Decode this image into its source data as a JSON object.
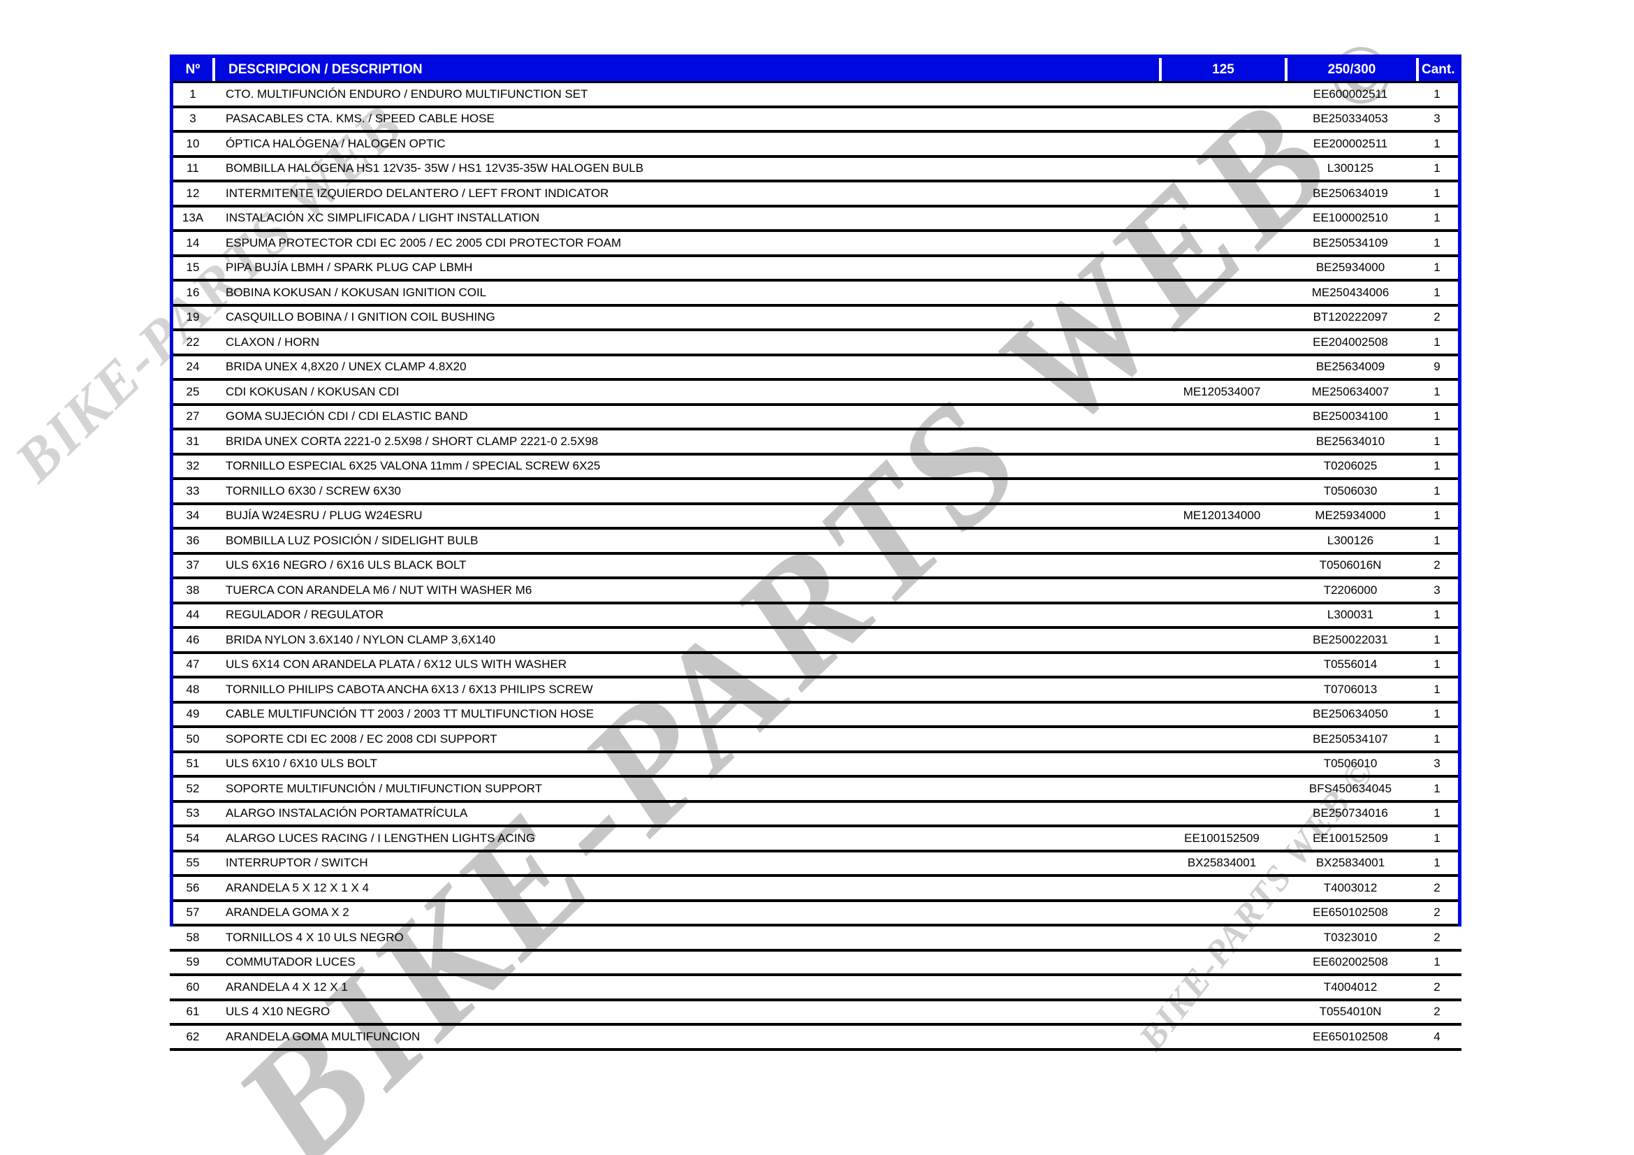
{
  "colors": {
    "header_blue": "#0008e0",
    "line_black": "#000000",
    "watermark_gray": "#c6c6c6"
  },
  "watermarks": {
    "large_text": "BIKE-PARTS WEB",
    "large_symbol": "©",
    "small_text": "BIKE-PARTS WEB ©",
    "fragment_text": "BIKE-PARTS WEB"
  },
  "table": {
    "columns": {
      "number": "Nº",
      "description": "DESCRIPCION / DESCRIPTION",
      "ref_125": "125",
      "ref_250_300": "250/300",
      "quantity": "Cant."
    },
    "rows": [
      {
        "num": "1",
        "description": "CTO. MULTIFUNCIÓN ENDURO / ENDURO MULTIFUNCTION SET",
        "ref_125": "",
        "ref_250_300": "EE600002511",
        "qty": "1",
        "in_main_box": true
      },
      {
        "num": "3",
        "description": "PASACABLES CTA. KMS. / SPEED CABLE HOSE",
        "ref_125": "",
        "ref_250_300": "BE250334053",
        "qty": "3",
        "in_main_box": true
      },
      {
        "num": "10",
        "description": "ÓPTICA HALÓGENA / HALOGEN OPTIC",
        "ref_125": "",
        "ref_250_300": "EE200002511",
        "qty": "1",
        "in_main_box": true
      },
      {
        "num": "11",
        "description": "BOMBILLA HALÓGENA HS1 12V35- 35W / HS1 12V35-35W HALOGEN BULB",
        "ref_125": "",
        "ref_250_300": "L300125",
        "qty": "1",
        "in_main_box": true
      },
      {
        "num": "12",
        "description": "INTERMITENTE IZQUIERDO DELANTERO / LEFT FRONT INDICATOR",
        "ref_125": "",
        "ref_250_300": "BE250634019",
        "qty": "1",
        "in_main_box": true
      },
      {
        "num": "13A",
        "description": "INSTALACIÓN XC SIMPLIFICADA / LIGHT  INSTALLATION",
        "ref_125": "",
        "ref_250_300": "EE100002510",
        "qty": "1",
        "in_main_box": true
      },
      {
        "num": "14",
        "description": "ESPUMA PROTECTOR CDI EC 2005 / EC 2005 CDI PROTECTOR FOAM",
        "ref_125": "",
        "ref_250_300": "BE250534109",
        "qty": "1",
        "in_main_box": true
      },
      {
        "num": "15",
        "description": "PIPA BUJÍA LBMH / SPARK PLUG CAP LBMH",
        "ref_125": "",
        "ref_250_300": "BE25934000",
        "qty": "1",
        "in_main_box": true
      },
      {
        "num": "16",
        "description": "BOBINA KOKUSAN / KOKUSAN IGNITION COIL",
        "ref_125": "",
        "ref_250_300": "ME250434006",
        "qty": "1",
        "in_main_box": true
      },
      {
        "num": "19",
        "description": "CASQUILLO BOBINA / I GNITION COIL BUSHING",
        "ref_125": "",
        "ref_250_300": "BT120222097",
        "qty": "2",
        "in_main_box": true
      },
      {
        "num": "22",
        "description": "CLAXON / HORN",
        "ref_125": "",
        "ref_250_300": "EE204002508",
        "qty": "1",
        "in_main_box": true
      },
      {
        "num": "24",
        "description": "BRIDA UNEX 4,8X20 / UNEX CLAMP 4.8X20",
        "ref_125": "",
        "ref_250_300": "BE25634009",
        "qty": "9",
        "in_main_box": true
      },
      {
        "num": "25",
        "description": "CDI KOKUSAN / KOKUSAN CDI",
        "ref_125": "ME120534007",
        "ref_250_300": "ME250634007",
        "qty": "1",
        "in_main_box": true
      },
      {
        "num": "27",
        "description": "GOMA SUJECIÓN CDI / CDI ELASTIC BAND",
        "ref_125": "",
        "ref_250_300": "BE250034100",
        "qty": "1",
        "in_main_box": true
      },
      {
        "num": "31",
        "description": "BRIDA UNEX CORTA 2221-0 2.5X98 / SHORT CLAMP 2221-0 2.5X98",
        "ref_125": "",
        "ref_250_300": "BE25634010",
        "qty": "1",
        "in_main_box": true
      },
      {
        "num": "32",
        "description": "TORNILLO ESPECIAL 6X25 VALONA 11mm / SPECIAL SCREW 6X25",
        "ref_125": "",
        "ref_250_300": "T0206025",
        "qty": "1",
        "in_main_box": true
      },
      {
        "num": "33",
        "description": "TORNILLO 6X30 / SCREW 6X30",
        "ref_125": "",
        "ref_250_300": "T0506030",
        "qty": "1",
        "in_main_box": true
      },
      {
        "num": "34",
        "description": "BUJÍA W24ESRU / PLUG W24ESRU",
        "ref_125": "ME120134000",
        "ref_250_300": "ME25934000",
        "qty": "1",
        "in_main_box": true
      },
      {
        "num": "36",
        "description": "BOMBILLA LUZ POSICIÓN / SIDELIGHT BULB",
        "ref_125": "",
        "ref_250_300": "L300126",
        "qty": "1",
        "in_main_box": true
      },
      {
        "num": "37",
        "description": "ULS 6X16 NEGRO / 6X16 ULS BLACK BOLT",
        "ref_125": "",
        "ref_250_300": "T0506016N",
        "qty": "2",
        "in_main_box": true
      },
      {
        "num": "38",
        "description": "TUERCA CON ARANDELA M6 / NUT WITH WASHER M6",
        "ref_125": "",
        "ref_250_300": "T2206000",
        "qty": "3",
        "in_main_box": true
      },
      {
        "num": "44",
        "description": "REGULADOR / REGULATOR",
        "ref_125": "",
        "ref_250_300": "L300031",
        "qty": "1",
        "in_main_box": true
      },
      {
        "num": "46",
        "description": "BRIDA NYLON 3.6X140 / NYLON CLAMP 3,6X140",
        "ref_125": "",
        "ref_250_300": "BE250022031",
        "qty": "1",
        "in_main_box": true
      },
      {
        "num": "47",
        "description": "ULS 6X14 CON ARANDELA PLATA / 6X12 ULS WITH WASHER",
        "ref_125": "",
        "ref_250_300": "T0556014",
        "qty": "1",
        "in_main_box": true
      },
      {
        "num": "48",
        "description": "TORNILLO PHILIPS CABOTA ANCHA 6X13 / 6X13 PHILIPS SCREW",
        "ref_125": "",
        "ref_250_300": "T0706013",
        "qty": "1",
        "in_main_box": true
      },
      {
        "num": "49",
        "description": "CABLE MULTIFUNCIÓN TT 2003 / 2003 TT MULTIFUNCTION HOSE",
        "ref_125": "",
        "ref_250_300": "BE250634050",
        "qty": "1",
        "in_main_box": true
      },
      {
        "num": "50",
        "description": "SOPORTE CDI EC 2008 / EC 2008 CDI SUPPORT",
        "ref_125": "",
        "ref_250_300": "BE250534107",
        "qty": "1",
        "in_main_box": true
      },
      {
        "num": "51",
        "description": "ULS 6X10 / 6X10 ULS BOLT",
        "ref_125": "",
        "ref_250_300": "T0506010",
        "qty": "3",
        "in_main_box": true
      },
      {
        "num": "52",
        "description": "SOPORTE MULTIFUNCIÓN / MULTIFUNCTION SUPPORT",
        "ref_125": "",
        "ref_250_300": "BFS450634045",
        "qty": "1",
        "in_main_box": true
      },
      {
        "num": "53",
        "description": "ALARGO INSTALACIÓN PORTAMATRÍCULA",
        "ref_125": "",
        "ref_250_300": "BE250734016",
        "qty": "1",
        "in_main_box": true
      },
      {
        "num": "54",
        "description": "ALARGO LUCES RACING / I LENGTHEN LIGHTS ACING",
        "ref_125": "EE100152509",
        "ref_250_300": "EE100152509",
        "qty": "1",
        "in_main_box": true
      },
      {
        "num": "55",
        "description": "INTERRUPTOR / SWITCH",
        "ref_125": "BX25834001",
        "ref_250_300": "BX25834001",
        "qty": "1",
        "in_main_box": true
      },
      {
        "num": "56",
        "description": "ARANDELA 5 X 12 X 1  X 4",
        "ref_125": "",
        "ref_250_300": "T4003012",
        "qty": "2",
        "in_main_box": true
      },
      {
        "num": "57",
        "description": "ARANDELA GOMA  X 2",
        "ref_125": "",
        "ref_250_300": "EE650102508",
        "qty": "2",
        "in_main_box": true
      },
      {
        "num": "58",
        "description": "TORNILLOS  4 X 10 ULS NEGRO",
        "ref_125": "",
        "ref_250_300": "T0323010",
        "qty": "2",
        "in_main_box": false
      },
      {
        "num": "59",
        "description": "COMMUTADOR LUCES",
        "ref_125": "",
        "ref_250_300": "EE602002508",
        "qty": "1",
        "in_main_box": false
      },
      {
        "num": "60",
        "description": "ARANDELA 4 X 12 X 1",
        "ref_125": "",
        "ref_250_300": "T4004012",
        "qty": "2",
        "in_main_box": false
      },
      {
        "num": "61",
        "description": "ULS 4 X10 NEGRO",
        "ref_125": "",
        "ref_250_300": "T0554010N",
        "qty": "2",
        "in_main_box": false
      },
      {
        "num": "62",
        "description": "ARANDELA GOMA MULTIFUNCION",
        "ref_125": "",
        "ref_250_300": "EE650102508",
        "qty": "4",
        "in_main_box": false
      }
    ]
  }
}
